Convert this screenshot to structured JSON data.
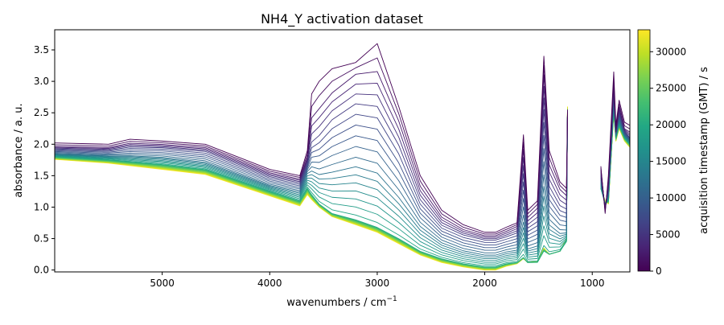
{
  "chart_data": {
    "type": "line",
    "title": "NH4_Y activation dataset",
    "xlabel": "wavenumbers / cm",
    "xlabel_sup": "−1",
    "ylabel": "absorbance / a. u.",
    "xlim": [
      6000,
      650
    ],
    "x_reversed": true,
    "ylim": [
      -0.03,
      3.82
    ],
    "grid": false,
    "x_ticks": [
      5000,
      4000,
      3000,
      2000,
      1000
    ],
    "x_tick_labels": [
      "5000",
      "4000",
      "3000",
      "2000",
      "1000"
    ],
    "y_ticks": [
      0.0,
      0.5,
      1.0,
      1.5,
      2.0,
      2.5,
      3.0,
      3.5
    ],
    "y_tick_labels": [
      "0.0",
      "0.5",
      "1.0",
      "1.5",
      "2.0",
      "2.5",
      "3.0",
      "3.5"
    ],
    "colorbar": {
      "label": "acquisition timestamp (GMT) / s",
      "colormap": "viridis",
      "range": [
        0,
        33000
      ],
      "ticks": [
        0,
        5000,
        10000,
        15000,
        20000,
        25000,
        30000
      ],
      "tick_labels": [
        "0",
        "5000",
        "10000",
        "15000",
        "20000",
        "25000",
        "30000"
      ]
    },
    "n_spectra": 30,
    "series": [
      {
        "timestamp": 0,
        "x": [
          6000,
          5500,
          5300,
          5000,
          4600,
          4000,
          3720,
          3650,
          3610,
          3540,
          3420,
          3200,
          3000,
          2800,
          2600,
          2400,
          2200,
          2000,
          1900,
          1800,
          1700,
          1640,
          1600,
          1510,
          1450,
          1400,
          1300,
          1240,
          1230,
          920,
          880,
          850,
          800,
          780,
          750,
          700,
          650
        ],
        "y": [
          2.02,
          2.0,
          2.08,
          2.05,
          2.0,
          1.6,
          1.5,
          1.9,
          2.8,
          3.0,
          3.2,
          3.3,
          3.6,
          2.6,
          1.5,
          0.95,
          0.72,
          0.6,
          0.6,
          0.68,
          0.75,
          2.15,
          0.95,
          1.1,
          3.4,
          1.9,
          1.4,
          1.3,
          2.55,
          1.65,
          0.9,
          1.5,
          3.15,
          2.3,
          2.7,
          2.35,
          2.3
        ]
      },
      {
        "timestamp": 2000,
        "x": [
          6000,
          5500,
          5300,
          5000,
          4600,
          4000,
          3720,
          3650,
          3610,
          3540,
          3420,
          3200,
          3000,
          2800,
          2600,
          2400,
          2200,
          2000,
          1900,
          1800,
          1700,
          1640,
          1600,
          1510,
          1450,
          1400,
          1300,
          1240,
          1230,
          920,
          880,
          850,
          800,
          780,
          750,
          700,
          650
        ],
        "y": [
          1.97,
          1.95,
          2.02,
          2.0,
          1.95,
          1.55,
          1.45,
          1.8,
          2.45,
          2.6,
          2.85,
          3.15,
          3.2,
          2.4,
          1.35,
          0.85,
          0.65,
          0.55,
          0.55,
          0.62,
          0.7,
          1.95,
          0.85,
          1.0,
          3.15,
          1.7,
          1.3,
          1.2,
          2.5,
          1.6,
          0.95,
          1.4,
          2.95,
          2.2,
          2.6,
          2.25,
          2.2
        ]
      },
      {
        "timestamp": 6000,
        "x": [
          6000,
          5500,
          5300,
          5000,
          4600,
          4000,
          3720,
          3650,
          3610,
          3540,
          3420,
          3200,
          3000,
          2800,
          2600,
          2400,
          2200,
          2000,
          1900,
          1800,
          1700,
          1640,
          1600,
          1510,
          1450,
          1400,
          1300,
          1240,
          1230,
          920,
          880,
          850,
          800,
          780,
          750,
          700,
          650
        ],
        "y": [
          1.92,
          1.9,
          1.95,
          1.94,
          1.88,
          1.48,
          1.38,
          1.7,
          2.0,
          2.1,
          2.35,
          2.6,
          2.55,
          1.95,
          1.1,
          0.7,
          0.55,
          0.47,
          0.47,
          0.52,
          0.58,
          1.5,
          0.65,
          0.75,
          2.5,
          1.3,
          1.0,
          0.95,
          2.5,
          1.5,
          1.0,
          1.3,
          2.85,
          2.2,
          2.5,
          2.2,
          2.1
        ]
      },
      {
        "timestamp": 12000,
        "x": [
          6000,
          5500,
          5300,
          5000,
          4600,
          4000,
          3720,
          3650,
          3610,
          3540,
          3420,
          3200,
          3000,
          2800,
          2600,
          2400,
          2200,
          2000,
          1900,
          1800,
          1700,
          1640,
          1600,
          1510,
          1450,
          1400,
          1300,
          1240,
          1230,
          920,
          880,
          850,
          800,
          780,
          750,
          700,
          650
        ],
        "y": [
          1.85,
          1.82,
          1.82,
          1.8,
          1.72,
          1.35,
          1.25,
          1.55,
          1.6,
          1.55,
          1.6,
          1.7,
          1.6,
          1.2,
          0.72,
          0.45,
          0.32,
          0.25,
          0.25,
          0.3,
          0.33,
          0.8,
          0.35,
          0.4,
          1.4,
          0.75,
          0.6,
          0.6,
          2.5,
          1.4,
          1.0,
          1.2,
          2.7,
          2.15,
          2.4,
          2.15,
          2.05
        ]
      },
      {
        "timestamp": 20000,
        "x": [
          6000,
          5500,
          5300,
          5000,
          4600,
          4000,
          3720,
          3650,
          3610,
          3540,
          3420,
          3200,
          3000,
          2800,
          2600,
          2400,
          2200,
          2000,
          1900,
          1800,
          1700,
          1640,
          1600,
          1510,
          1450,
          1400,
          1300,
          1240,
          1230,
          920,
          880,
          850,
          800,
          780,
          750,
          700,
          650
        ],
        "y": [
          1.8,
          1.75,
          1.72,
          1.68,
          1.6,
          1.25,
          1.1,
          1.3,
          1.2,
          1.05,
          0.9,
          0.8,
          0.68,
          0.5,
          0.3,
          0.18,
          0.1,
          0.05,
          0.05,
          0.1,
          0.12,
          0.2,
          0.12,
          0.12,
          0.3,
          0.25,
          0.3,
          0.45,
          2.5,
          1.3,
          1.05,
          1.1,
          2.55,
          2.1,
          2.3,
          2.1,
          2.0
        ]
      },
      {
        "timestamp": 33000,
        "x": [
          6000,
          5500,
          5300,
          5000,
          4600,
          4000,
          3720,
          3650,
          3610,
          3540,
          3420,
          3200,
          3000,
          2800,
          2600,
          2400,
          2200,
          2000,
          1900,
          1800,
          1700,
          1640,
          1600,
          1510,
          1450,
          1400,
          1300,
          1240,
          1230,
          920,
          880,
          850,
          800,
          780,
          750,
          700,
          650
        ],
        "y": [
          1.76,
          1.7,
          1.66,
          1.6,
          1.52,
          1.18,
          1.02,
          1.2,
          1.12,
          1.0,
          0.85,
          0.72,
          0.6,
          0.42,
          0.24,
          0.12,
          0.05,
          0.0,
          0.0,
          0.06,
          0.1,
          0.18,
          0.12,
          0.14,
          0.35,
          0.25,
          0.3,
          0.5,
          2.6,
          1.3,
          1.1,
          1.05,
          2.5,
          2.05,
          2.25,
          2.05,
          1.95
        ]
      }
    ]
  }
}
